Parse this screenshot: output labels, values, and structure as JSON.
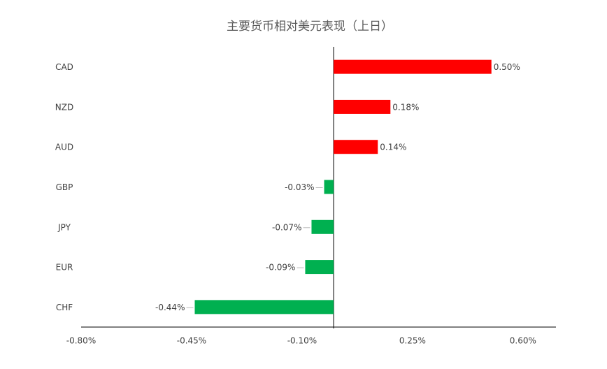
{
  "chart_data": {
    "type": "barh",
    "title": "主要货币相对美元表现（上日）",
    "categories": [
      "CAD",
      "NZD",
      "AUD",
      "GBP",
      "JPY",
      "EUR",
      "CHF"
    ],
    "values": [
      0.5,
      0.18,
      0.14,
      -0.03,
      -0.07,
      -0.09,
      -0.44
    ],
    "value_labels": [
      "0.50%",
      "0.18%",
      "0.14%",
      "-0.03%",
      "-0.07%",
      "-0.09%",
      "-0.44%"
    ],
    "colors": [
      "#ff0000",
      "#ff0000",
      "#ff0000",
      "#00b050",
      "#00b050",
      "#00b050",
      "#00b050"
    ],
    "xlim": [
      -0.8,
      0.7
    ],
    "xticks": [
      {
        "value": -0.8,
        "label": "-0.80%"
      },
      {
        "value": -0.45,
        "label": "-0.45%"
      },
      {
        "value": -0.1,
        "label": "-0.10%"
      },
      {
        "value": 0.25,
        "label": "0.25%"
      },
      {
        "value": 0.6,
        "label": "0.60%"
      }
    ],
    "grid": false
  }
}
